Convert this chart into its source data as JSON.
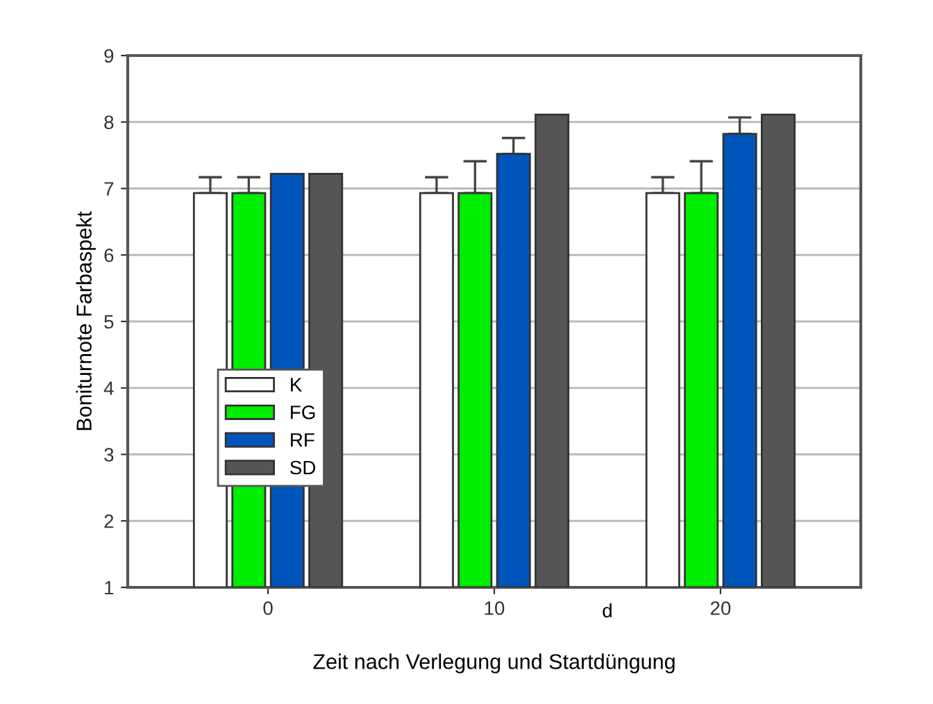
{
  "chart_data": {
    "type": "bar",
    "xlabel": "Zeit nach Verlegung und Startdüngung",
    "ylabel": "Boniturnote Farbaspekt",
    "categories": [
      "0",
      "10",
      "20"
    ],
    "series": [
      {
        "name": "K",
        "color": "#ffffff",
        "values": [
          6.93,
          6.93,
          6.93
        ],
        "errors": [
          [
            6.93,
            7.17
          ],
          [
            6.93,
            7.17
          ],
          [
            6.93,
            7.17
          ]
        ]
      },
      {
        "name": "FG",
        "color": "#00ee00",
        "values": [
          6.93,
          6.93,
          6.93
        ],
        "errors": [
          [
            6.93,
            7.17
          ],
          [
            6.93,
            7.41
          ],
          [
            6.93,
            7.41
          ]
        ]
      },
      {
        "name": "RF",
        "color": "#0055bb",
        "values": [
          7.22,
          7.52,
          7.82
        ],
        "errors": [
          null,
          [
            7.52,
            7.76
          ],
          [
            7.82,
            8.07
          ]
        ]
      },
      {
        "name": "SD",
        "color": "#555555",
        "values": [
          7.22,
          8.11,
          8.11
        ],
        "errors": [
          null,
          null,
          null
        ]
      }
    ],
    "annotations": [
      "d"
    ],
    "ylim": [
      1,
      9
    ],
    "yticks": [
      1,
      2,
      3,
      4,
      5,
      6,
      7,
      8,
      9
    ],
    "grid": "y",
    "legend": "left"
  }
}
